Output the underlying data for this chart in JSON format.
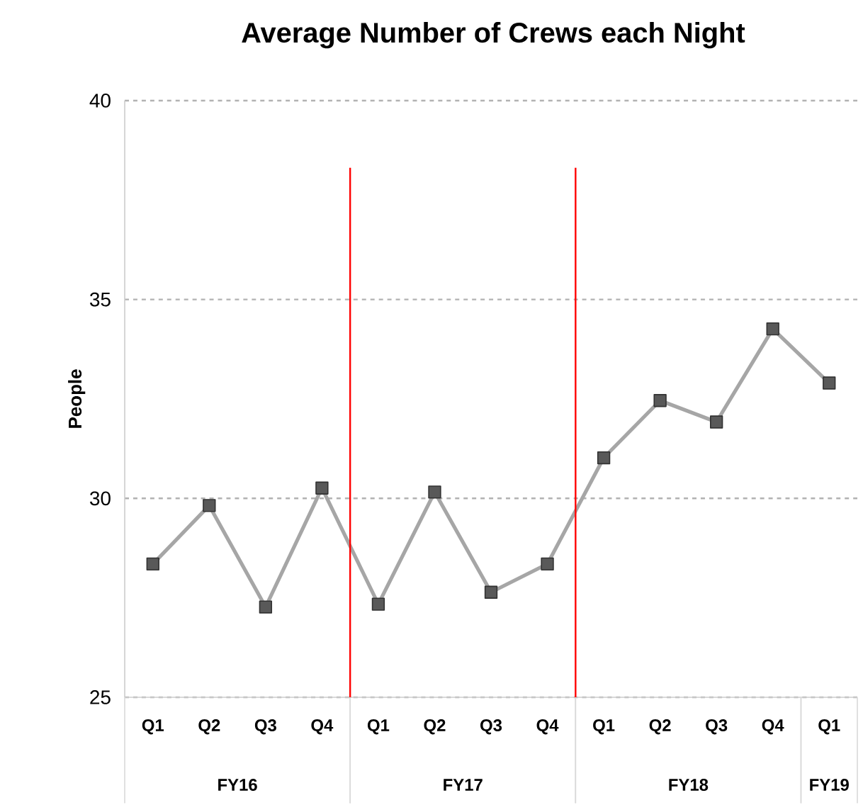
{
  "chart_data": {
    "type": "line",
    "title": "Average Number of Crews each Night",
    "ylabel": "People",
    "categories": [
      "Q1",
      "Q2",
      "Q3",
      "Q4",
      "Q1",
      "Q2",
      "Q3",
      "Q4",
      "Q1",
      "Q2",
      "Q3",
      "Q4",
      "Q1"
    ],
    "series": [
      {
        "color": "#a6a6a6",
        "values": [
          28.35,
          29.82,
          27.27,
          30.26,
          27.34,
          30.16,
          27.64,
          28.35,
          31.02,
          32.46,
          31.92,
          34.26,
          32.9
        ]
      }
    ],
    "ylim": [
      25,
      40
    ],
    "yticks": [
      25,
      30,
      35,
      40
    ],
    "grid": "y",
    "marker": "square",
    "line_style": "solid",
    "annotations": [
      "FY16",
      "FY17",
      "FY18",
      "FY19"
    ]
  }
}
